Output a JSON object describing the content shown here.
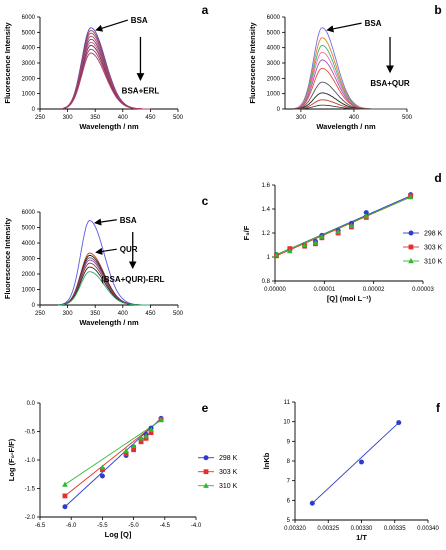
{
  "chart_data": [
    {
      "panel": "a",
      "type": "line",
      "xlabel": "Wavelength / nm",
      "ylabel": "Fluorescence Intensity",
      "xlim": [
        250,
        500
      ],
      "ylim": [
        0,
        6000
      ],
      "xticks": [
        250,
        300,
        350,
        400,
        450,
        500
      ],
      "yticks": [
        0,
        1000,
        2000,
        3000,
        4000,
        5000,
        6000
      ],
      "x_range": [
        290,
        450
      ],
      "peak_x": 342,
      "series": [
        {
          "peak": 5300,
          "color": "#3b4cc0"
        },
        {
          "peak": 5120,
          "color": "#c0392b"
        },
        {
          "peak": 4950,
          "color": "#8e44ad"
        },
        {
          "peak": 4750,
          "color": "#a05050"
        },
        {
          "peak": 4550,
          "color": "#7a3b7a"
        },
        {
          "peak": 4350,
          "color": "#c25a7a"
        },
        {
          "peak": 4150,
          "color": "#6b2d5c"
        },
        {
          "peak": 3900,
          "color": "#9b3b6a"
        },
        {
          "peak": 3650,
          "color": "#b04060"
        }
      ],
      "annotations": [
        {
          "text": "BSA",
          "x": 400,
          "y": 5800
        },
        {
          "text": "BSA+ERL",
          "x": 432,
          "y": 1000
        }
      ]
    },
    {
      "panel": "b",
      "type": "line",
      "xlabel": "Wavelength / nm",
      "ylabel": "Fluorescence Intensity",
      "xlim": [
        270,
        500
      ],
      "ylim": [
        0,
        6000
      ],
      "xticks": [
        300,
        400,
        500
      ],
      "yticks": [
        0,
        1000,
        2000,
        3000,
        4000,
        5000,
        6000
      ],
      "x_range": [
        285,
        500
      ],
      "peak_x": 340,
      "series": [
        {
          "peak": 5300,
          "color": "#6f6fe0"
        },
        {
          "peak": 4650,
          "color": "#e67e22"
        },
        {
          "peak": 4150,
          "color": "#3cb371"
        },
        {
          "peak": 3700,
          "color": "#ff69b4"
        },
        {
          "peak": 3200,
          "color": "#9b59b6"
        },
        {
          "peak": 2650,
          "color": "#e74c3c"
        },
        {
          "peak": 1750,
          "color": "#555555"
        },
        {
          "peak": 1050,
          "color": "#222222"
        },
        {
          "peak": 600,
          "color": "#c0392b"
        },
        {
          "peak": 250,
          "color": "#444444"
        }
      ],
      "annotations": [
        {
          "text": "BSA",
          "x": 405,
          "y": 5600
        },
        {
          "text": "BSA+QUR",
          "x": 468,
          "y": 1500
        }
      ]
    },
    {
      "panel": "c",
      "type": "line",
      "xlabel": "Wavelength / nm",
      "ylabel": "Fluorescence Intensity",
      "xlim": [
        250,
        500
      ],
      "ylim": [
        0,
        6000
      ],
      "xticks": [
        250,
        300,
        350,
        400,
        450,
        500
      ],
      "yticks": [
        0,
        1000,
        2000,
        3000,
        4000,
        5000,
        6000
      ],
      "x_range": [
        283,
        450
      ],
      "peak_x": 340,
      "series": [
        {
          "peak": 5450,
          "color": "#5a5ae6"
        },
        {
          "peak": 3350,
          "color": "#c0392b"
        },
        {
          "peak": 3200,
          "color": "#222222"
        },
        {
          "peak": 3050,
          "color": "#555555"
        },
        {
          "peak": 2900,
          "color": "#8e44ad"
        },
        {
          "peak": 2700,
          "color": "#a93226"
        },
        {
          "peak": 2450,
          "color": "#2c2c2c"
        },
        {
          "peak": 2150,
          "color": "#27ae60"
        }
      ],
      "annotations": [
        {
          "text": "BSA",
          "x": 380,
          "y": 5500
        },
        {
          "text": "QUR",
          "x": 380,
          "y": 3600
        },
        {
          "text": "(BSA+QUR)-ERL",
          "x": 418,
          "y": 1500
        }
      ]
    },
    {
      "panel": "d",
      "type": "scatter",
      "xlabel": "[Q] (mol L⁻¹)",
      "ylabel": "F₀/F",
      "xlim": [
        0,
        3e-05
      ],
      "ylim": [
        0.8,
        1.6
      ],
      "xticks": [
        0,
        1e-05,
        2e-05,
        3e-05
      ],
      "xtick_labels": [
        "0.00000",
        "0.00001",
        "0.00002",
        "0.00003"
      ],
      "yticks": [
        0.8,
        1.0,
        1.2,
        1.4,
        1.6
      ],
      "legend_position": "right",
      "series": [
        {
          "name": "298 K",
          "color": "#2e3ccc",
          "marker": "circle",
          "x": [
            3e-07,
            3e-06,
            6e-06,
            8.2e-06,
            9.5e-06,
            1.28e-05,
            1.55e-05,
            1.85e-05,
            2.75e-05
          ],
          "y": [
            1.02,
            1.06,
            1.1,
            1.13,
            1.18,
            1.22,
            1.28,
            1.37,
            1.52
          ]
        },
        {
          "name": "303 K",
          "color": "#e62e2e",
          "marker": "square",
          "x": [
            3e-07,
            3e-06,
            6e-06,
            8.2e-06,
            9.5e-06,
            1.28e-05,
            1.55e-05,
            1.85e-05,
            2.75e-05
          ],
          "y": [
            1.01,
            1.07,
            1.09,
            1.11,
            1.16,
            1.2,
            1.25,
            1.33,
            1.51
          ]
        },
        {
          "name": "310 K",
          "color": "#2eb82e",
          "marker": "triangle",
          "x": [
            3e-07,
            3e-06,
            6e-06,
            8.2e-06,
            9.5e-06,
            1.28e-05,
            1.55e-05,
            1.85e-05,
            2.75e-05
          ],
          "y": [
            1.02,
            1.05,
            1.1,
            1.12,
            1.17,
            1.21,
            1.26,
            1.34,
            1.5
          ]
        }
      ],
      "fits": [
        {
          "color": "#2e3ccc",
          "x": [
            3e-07,
            2.75e-05
          ],
          "y": [
            1.02,
            1.51
          ]
        },
        {
          "color": "#e62e2e",
          "x": [
            3e-07,
            2.75e-05
          ],
          "y": [
            1.01,
            1.5
          ]
        },
        {
          "color": "#2eb82e",
          "x": [
            3e-07,
            2.75e-05
          ],
          "y": [
            1.02,
            1.5
          ]
        }
      ]
    },
    {
      "panel": "e",
      "type": "scatter",
      "xlabel": "Log [Q]",
      "ylabel": "Log (F₀-F/F)",
      "xlim": [
        -6.5,
        -4.0
      ],
      "ylim": [
        -2.0,
        0.0
      ],
      "xticks": [
        -6.5,
        -6.0,
        -5.5,
        -5.0,
        -4.5,
        -4.0
      ],
      "xtick_labels": [
        "-6.5",
        "-6.0",
        "-5.5",
        "-5.0",
        "-4.5",
        "-4.0"
      ],
      "yticks": [
        -2.0,
        -1.5,
        -1.0,
        -0.5,
        0.0
      ],
      "ytick_labels": [
        "-2.0",
        "-1.5",
        "-1.0",
        "-0.5",
        "0.0"
      ],
      "legend_position": "right",
      "series": [
        {
          "name": "298 K",
          "color": "#2e3ccc",
          "marker": "circle",
          "x": [
            -6.1,
            -5.5,
            -5.12,
            -5.0,
            -4.88,
            -4.8,
            -4.72,
            -4.56
          ],
          "y": [
            -1.82,
            -1.28,
            -0.92,
            -0.77,
            -0.64,
            -0.55,
            -0.44,
            -0.27
          ]
        },
        {
          "name": "303 K",
          "color": "#e62e2e",
          "marker": "square",
          "x": [
            -6.1,
            -5.5,
            -5.12,
            -5.0,
            -4.88,
            -4.8,
            -4.72,
            -4.56
          ],
          "y": [
            -1.63,
            -1.17,
            -0.89,
            -0.82,
            -0.68,
            -0.62,
            -0.52,
            -0.29
          ]
        },
        {
          "name": "310 K",
          "color": "#2eb82e",
          "marker": "triangle",
          "x": [
            -6.1,
            -5.5,
            -5.12,
            -5.0,
            -4.88,
            -4.8,
            -4.72,
            -4.56
          ],
          "y": [
            -1.43,
            -1.13,
            -0.84,
            -0.75,
            -0.62,
            -0.58,
            -0.47,
            -0.3
          ]
        }
      ],
      "fits": [
        {
          "color": "#2e3ccc",
          "x": [
            -6.1,
            -4.56
          ],
          "y": [
            -1.82,
            -0.27
          ]
        },
        {
          "color": "#e62e2e",
          "x": [
            -6.1,
            -4.56
          ],
          "y": [
            -1.63,
            -0.29
          ]
        },
        {
          "color": "#2eb82e",
          "x": [
            -6.1,
            -4.56
          ],
          "y": [
            -1.43,
            -0.3
          ]
        }
      ]
    },
    {
      "panel": "f",
      "type": "scatter",
      "xlabel": "1/T",
      "ylabel": "lnKb",
      "xlim": [
        0.0032,
        0.0034
      ],
      "ylim": [
        5,
        11
      ],
      "xticks": [
        0.0032,
        0.00325,
        0.0033,
        0.00335,
        0.0034
      ],
      "xtick_labels": [
        "0.00320",
        "0.00325",
        "0.00330",
        "0.00335",
        "0.00340"
      ],
      "yticks": [
        5,
        6,
        7,
        8,
        9,
        10,
        11
      ],
      "series": [
        {
          "color": "#2e3ccc",
          "marker": "circle",
          "x": [
            0.003226,
            0.0033,
            0.003356
          ],
          "y": [
            5.85,
            7.95,
            9.95
          ]
        }
      ],
      "fits": [
        {
          "color": "#2e3ccc",
          "x": [
            0.003226,
            0.003356
          ],
          "y": [
            5.85,
            9.95
          ]
        }
      ]
    }
  ]
}
